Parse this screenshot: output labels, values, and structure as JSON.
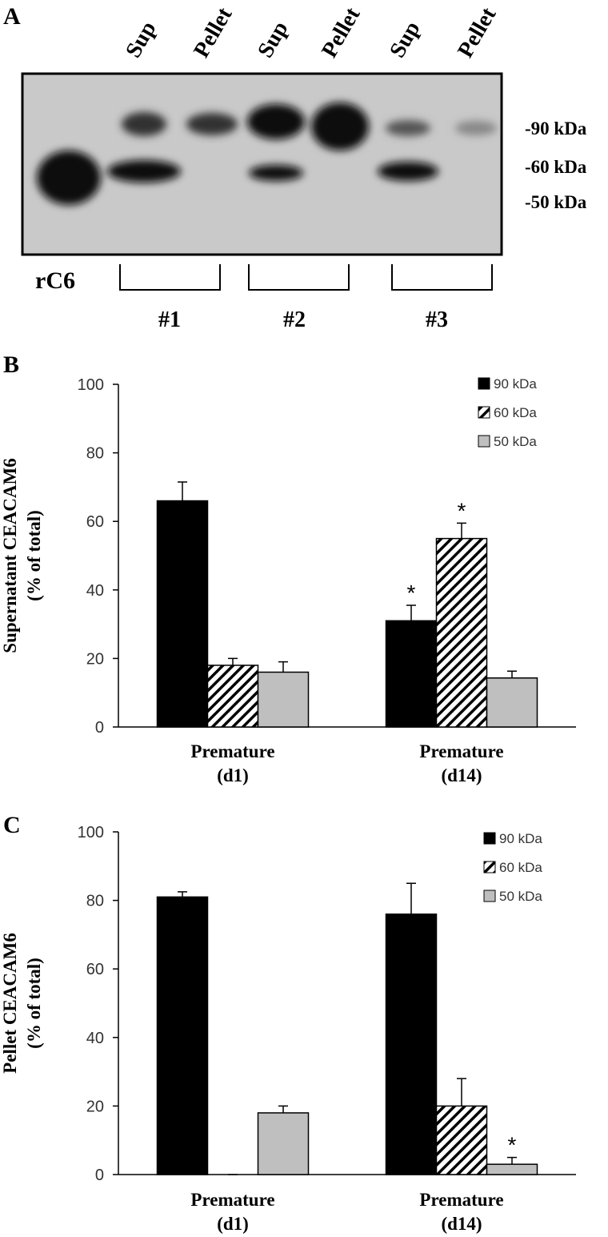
{
  "panel_a": {
    "letter": "A",
    "lanes": [
      "Sup",
      "Pellet",
      "Sup",
      "Pellet",
      "Sup",
      "Pellet"
    ],
    "markers": [
      "-90 kDa",
      "-60 kDa",
      "-50 kDa"
    ],
    "control": "rC6",
    "groups": [
      "#1",
      "#2",
      "#3"
    ]
  },
  "chart_data": [
    {
      "type": "bar",
      "letter": "B",
      "ylabel": "Supernatant CEACAM6\n(% of total)",
      "categories": [
        "Premature\n(d1)",
        "Premature\n(d14)"
      ],
      "ylim": [
        0,
        100
      ],
      "yticks": [
        0,
        20,
        40,
        60,
        80,
        100
      ],
      "legend": "top-right",
      "series": [
        {
          "name": "90 kDa",
          "color": "#000000",
          "hatch": false,
          "values": [
            66,
            31
          ],
          "errors": [
            5.5,
            4.5
          ],
          "markers": [
            null,
            "*"
          ]
        },
        {
          "name": "60 kDa",
          "color": "#ffffff",
          "hatch": true,
          "values": [
            18,
            55
          ],
          "errors": [
            2,
            4.5
          ],
          "markers": [
            null,
            "*"
          ]
        },
        {
          "name": "50 kDa",
          "color": "#bfbfbf",
          "hatch": false,
          "values": [
            16,
            14.3
          ],
          "errors": [
            3,
            2
          ],
          "markers": [
            null,
            null
          ]
        }
      ]
    },
    {
      "type": "bar",
      "letter": "C",
      "ylabel": "Pellet CEACAM6\n(% of total)",
      "categories": [
        "Premature\n(d1)",
        "Premature\n(d14)"
      ],
      "ylim": [
        0,
        100
      ],
      "yticks": [
        0,
        20,
        40,
        60,
        80,
        100
      ],
      "legend": "top-right",
      "series": [
        {
          "name": "90 kDa",
          "color": "#000000",
          "hatch": false,
          "values": [
            81,
            76
          ],
          "errors": [
            1.5,
            9
          ],
          "markers": [
            null,
            null
          ]
        },
        {
          "name": "60 kDa",
          "color": "#ffffff",
          "hatch": true,
          "values": [
            0,
            20
          ],
          "errors": [
            0,
            8
          ],
          "markers": [
            null,
            null
          ]
        },
        {
          "name": "50 kDa",
          "color": "#bfbfbf",
          "hatch": false,
          "values": [
            18,
            3
          ],
          "errors": [
            2,
            2
          ],
          "markers": [
            null,
            "*"
          ]
        }
      ]
    }
  ]
}
